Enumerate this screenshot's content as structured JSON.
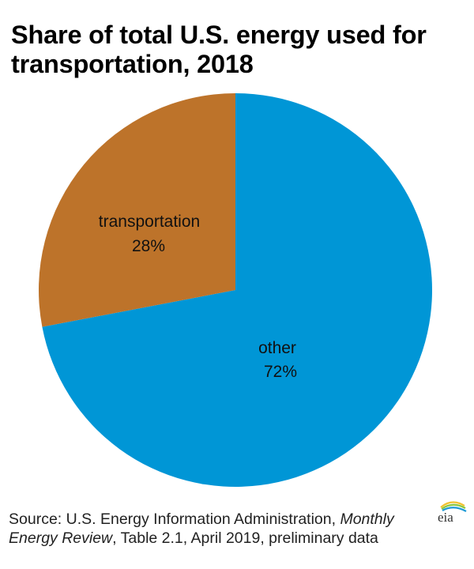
{
  "chart_data": {
    "type": "pie",
    "title": "Share of total U.S. energy used for transportation, 2018",
    "start_angle": "12 o'clock",
    "direction": "clockwise",
    "slices": [
      {
        "label": "other",
        "value": 72,
        "value_label": "72%",
        "color": "#0096D6"
      },
      {
        "label": "transportation",
        "value": 28,
        "value_label": "28%",
        "color": "#BD732A"
      }
    ],
    "legend": "none (labels inside slices)"
  },
  "header": {
    "title_line1": "Share of total U.S. energy used for",
    "title_line2": "transportation, 2018"
  },
  "footer": {
    "source_prefix": "Source: U.S. Energy Information Administration, ",
    "source_italic1": "Monthly",
    "source_italic2": "Energy Review",
    "source_suffix": ", Table 2.1, April 2019, preliminary data",
    "logo_text": "eia",
    "logo_icon": "eia-logo-icon"
  }
}
